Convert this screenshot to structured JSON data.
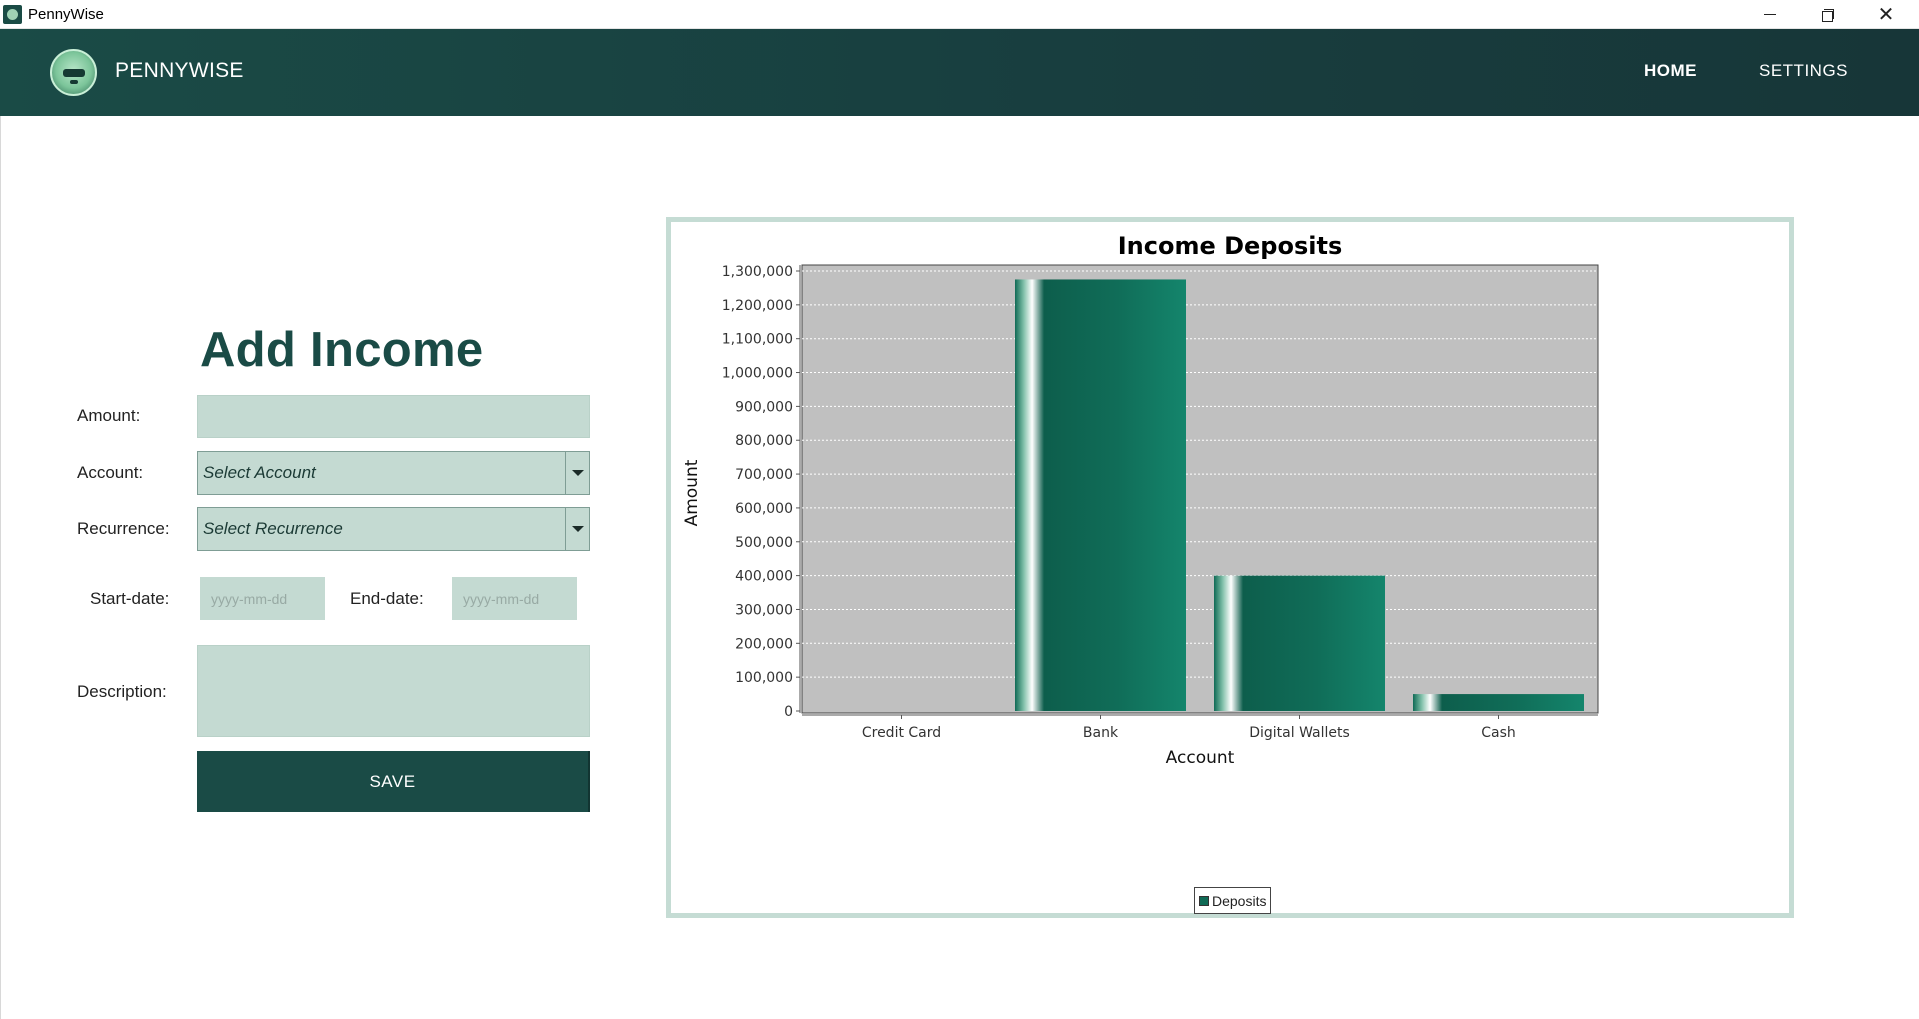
{
  "window": {
    "title": "PennyWise"
  },
  "header": {
    "brand": "PENNYWISE",
    "nav": [
      {
        "label": "HOME"
      },
      {
        "label": "SETTINGS"
      }
    ]
  },
  "form": {
    "title": "Add Income",
    "amount_label": "Amount:",
    "amount_value": "",
    "account_label": "Account:",
    "account_selected": "Select Account",
    "recurrence_label": "Recurrence:",
    "recurrence_selected": "Select Recurrence",
    "start_label": "Start-date:",
    "start_placeholder": "yyyy-mm-dd",
    "end_label": "End-date:",
    "end_placeholder": "yyyy-mm-dd",
    "description_label": "Description:",
    "save_label": "SAVE"
  },
  "colors": {
    "primary": "#1a4b46",
    "field_bg": "#c4dad2",
    "bar": "#0f6a55"
  },
  "chart_data": {
    "type": "bar",
    "title": "Income Deposits",
    "xlabel": "Account",
    "ylabel": "Amount",
    "categories": [
      "Credit Card",
      "Bank",
      "Digital Wallets",
      "Cash"
    ],
    "series": [
      {
        "name": "Deposits",
        "values": [
          0,
          1275000,
          400000,
          50000
        ]
      }
    ],
    "ylim": [
      0,
      1300000
    ],
    "yticks": [
      0,
      100000,
      200000,
      300000,
      400000,
      500000,
      600000,
      700000,
      800000,
      900000,
      1000000,
      1100000,
      1200000,
      1300000
    ],
    "ytick_labels": [
      "0",
      "100,000",
      "200,000",
      "300,000",
      "400,000",
      "500,000",
      "600,000",
      "700,000",
      "800,000",
      "900,000",
      "1,000,000",
      "1,100,000",
      "1,200,000",
      "1,300,000"
    ],
    "grid": true,
    "legend": "bottom-center"
  }
}
